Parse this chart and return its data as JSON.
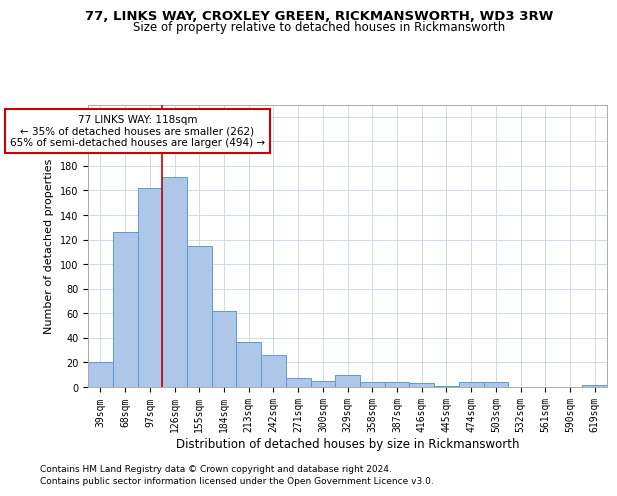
{
  "title1": "77, LINKS WAY, CROXLEY GREEN, RICKMANSWORTH, WD3 3RW",
  "title2": "Size of property relative to detached houses in Rickmansworth",
  "xlabel": "Distribution of detached houses by size in Rickmansworth",
  "ylabel": "Number of detached properties",
  "bar_labels": [
    "39sqm",
    "68sqm",
    "97sqm",
    "126sqm",
    "155sqm",
    "184sqm",
    "213sqm",
    "242sqm",
    "271sqm",
    "300sqm",
    "329sqm",
    "358sqm",
    "387sqm",
    "416sqm",
    "445sqm",
    "474sqm",
    "503sqm",
    "532sqm",
    "561sqm",
    "590sqm",
    "619sqm"
  ],
  "bar_values": [
    20,
    126,
    162,
    171,
    115,
    62,
    37,
    26,
    7,
    5,
    10,
    4,
    4,
    3,
    1,
    4,
    4,
    0,
    0,
    0,
    2
  ],
  "bar_color": "#aec6e8",
  "bar_edge_color": "#5b9bd5",
  "annotation_text": "77 LINKS WAY: 118sqm\n← 35% of detached houses are smaller (262)\n65% of semi-detached houses are larger (494) →",
  "annotation_box_color": "#ffffff",
  "annotation_box_edge": "#cc0000",
  "vline_color": "#cc0000",
  "footnote1": "Contains HM Land Registry data © Crown copyright and database right 2024.",
  "footnote2": "Contains public sector information licensed under the Open Government Licence v3.0.",
  "ylim": [
    0,
    230
  ],
  "yticks": [
    0,
    20,
    40,
    60,
    80,
    100,
    120,
    140,
    160,
    180,
    200,
    220
  ],
  "bg_color": "#ffffff",
  "grid_color": "#c8d4e8",
  "title1_fontsize": 9.5,
  "title2_fontsize": 8.5,
  "xlabel_fontsize": 8.5,
  "ylabel_fontsize": 8,
  "tick_fontsize": 7,
  "annotation_fontsize": 7.5,
  "footnote_fontsize": 6.5,
  "vline_x": 2.5
}
